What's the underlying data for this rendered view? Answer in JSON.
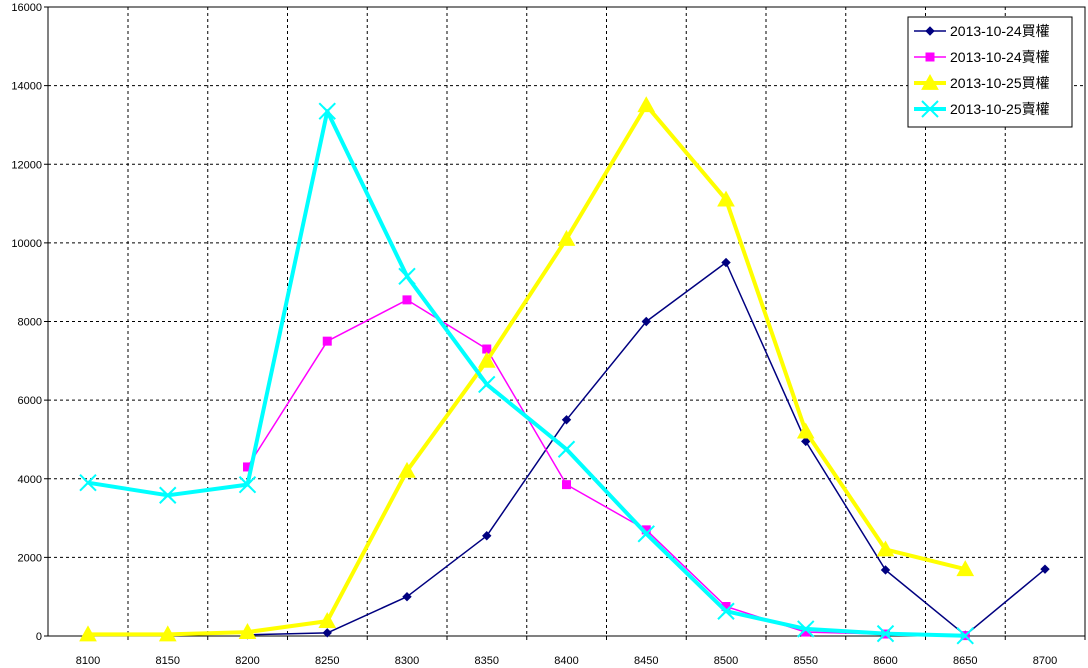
{
  "chart_data": {
    "type": "line",
    "title": "",
    "xlabel": "",
    "ylabel": "",
    "x": [
      8100,
      8150,
      8200,
      8250,
      8300,
      8350,
      8400,
      8450,
      8500,
      8550,
      8600,
      8650,
      8700
    ],
    "ylim": [
      0,
      16000
    ],
    "yticks": [
      0,
      2000,
      4000,
      6000,
      8000,
      10000,
      12000,
      14000,
      16000
    ],
    "grid": true,
    "legend_position": "top-right",
    "series": [
      {
        "name": "2013-10-24買權",
        "color": "#000080",
        "marker": "diamond",
        "values": [
          null,
          null,
          30,
          80,
          1000,
          2550,
          5500,
          8000,
          9500,
          4950,
          1680,
          20,
          1700
        ]
      },
      {
        "name": "2013-10-24賣權",
        "color": "#ff00ff",
        "marker": "square",
        "values": [
          null,
          null,
          4300,
          7500,
          8550,
          7300,
          3850,
          2700,
          750,
          100,
          50,
          10,
          null
        ]
      },
      {
        "name": "2013-10-25買權",
        "color": "#ffff00",
        "marker": "triangle",
        "values": [
          40,
          40,
          100,
          380,
          4200,
          7000,
          10100,
          13500,
          11100,
          5200,
          2200,
          1700,
          null
        ]
      },
      {
        "name": "2013-10-25賣權",
        "color": "#00ffff",
        "marker": "x",
        "values": [
          3900,
          3580,
          3850,
          13350,
          9150,
          6400,
          4750,
          2600,
          630,
          180,
          60,
          5,
          null
        ]
      }
    ]
  }
}
